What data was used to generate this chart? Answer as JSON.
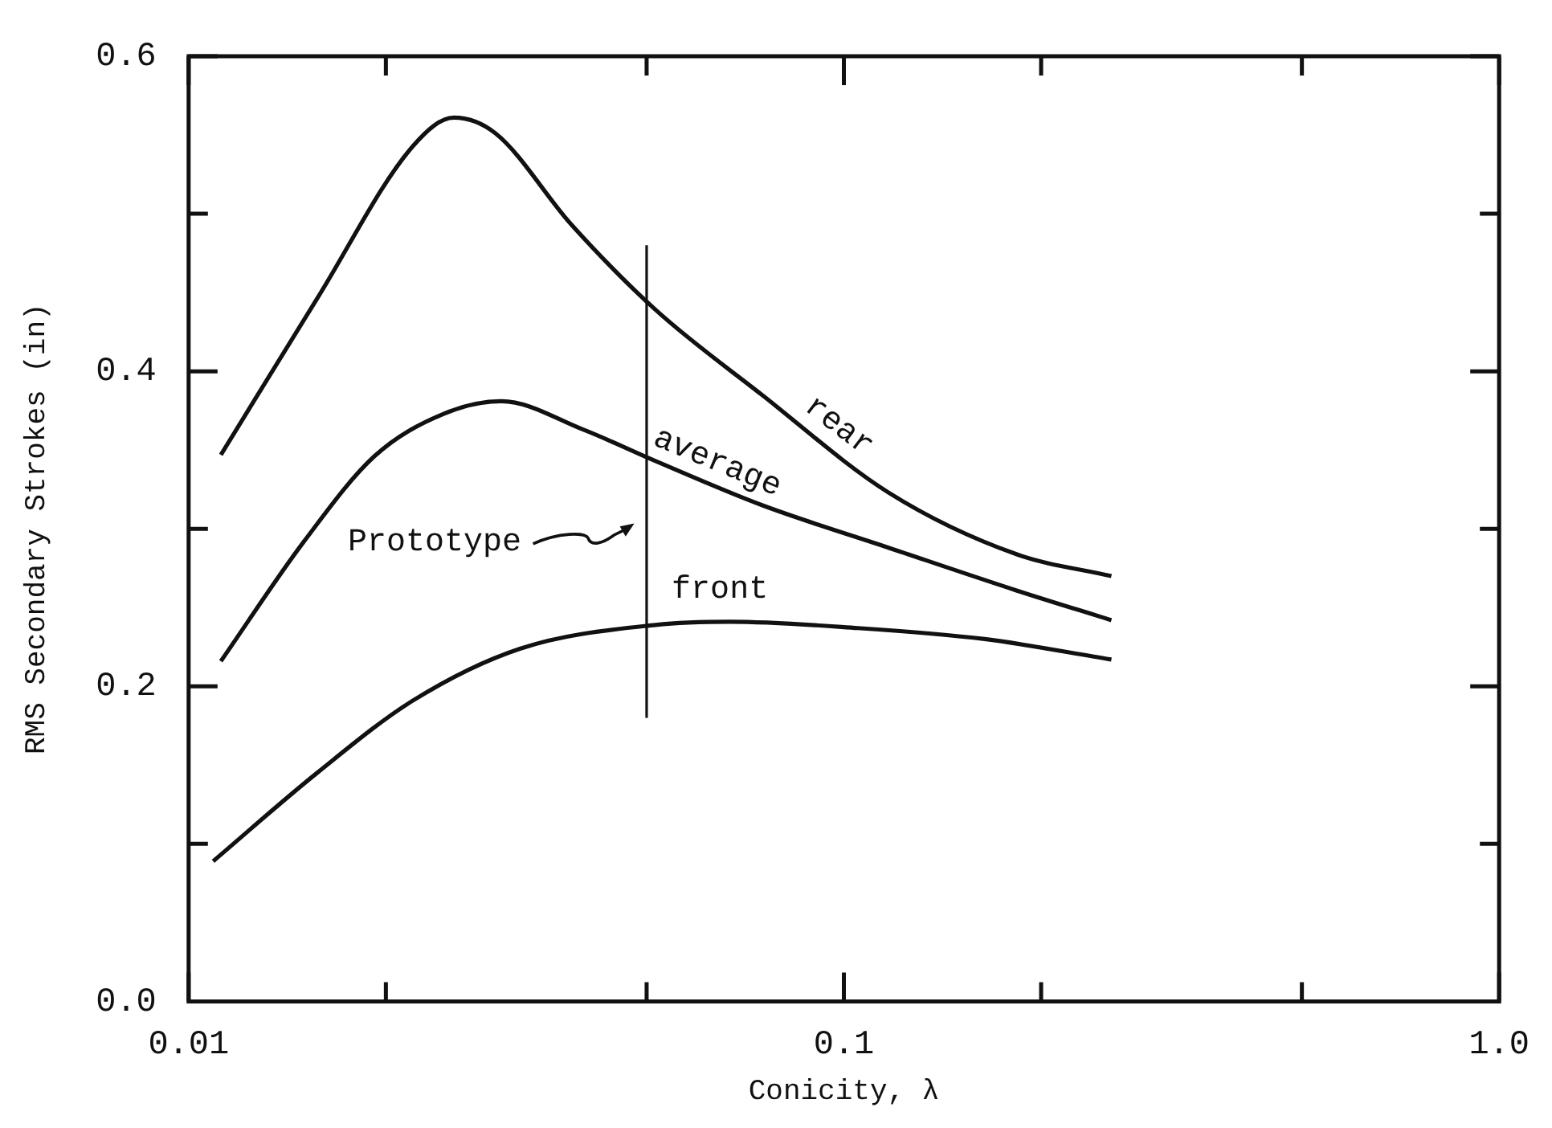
{
  "chart_data": {
    "type": "line",
    "xlabel": "Conicity, λ",
    "ylabel": "RMS Secondary Strokes (in)",
    "log": "x",
    "xlim": [
      0.01,
      1
    ],
    "xticks": [
      {
        "value": 0.01,
        "label": "0.01"
      },
      {
        "value": 0.02,
        "label": null
      },
      {
        "value": 0.05,
        "label": null
      },
      {
        "value": 0.1,
        "label": "0.1"
      },
      {
        "value": 0.2,
        "label": null
      },
      {
        "value": 0.5,
        "label": null
      },
      {
        "value": 1,
        "label": "1.0"
      }
    ],
    "ylim": [
      0,
      0.6
    ],
    "yticks": [
      {
        "value": 0,
        "label": "0.0"
      },
      {
        "value": 0.1,
        "label": null
      },
      {
        "value": 0.2,
        "label": "0.2"
      },
      {
        "value": 0.3,
        "label": null
      },
      {
        "value": 0.4,
        "label": "0.4"
      },
      {
        "value": 0.5,
        "label": null
      },
      {
        "value": 0.6,
        "label": "0.6"
      }
    ],
    "grid": false,
    "legend": false,
    "marker": "none",
    "line_style": "solid",
    "series": [
      {
        "name": "rear",
        "color": "#111111",
        "x": [
          0.0112,
          0.0157,
          0.022,
          0.0254,
          0.0294,
          0.0384,
          0.0516,
          0.075,
          0.117,
          0.183,
          0.256
        ],
        "values": [
          0.347,
          0.446,
          0.543,
          0.561,
          0.551,
          0.493,
          0.439,
          0.385,
          0.323,
          0.284,
          0.27
        ]
      },
      {
        "name": "average",
        "color": "#111111",
        "x": [
          0.0112,
          0.015,
          0.0192,
          0.0245,
          0.03,
          0.04,
          0.0516,
          0.075,
          0.117,
          0.183,
          0.256
        ],
        "values": [
          0.216,
          0.292,
          0.346,
          0.373,
          0.381,
          0.363,
          0.343,
          0.315,
          0.288,
          0.261,
          0.242
        ]
      },
      {
        "name": "front",
        "color": "#111111",
        "x": [
          0.0109,
          0.0157,
          0.022,
          0.0321,
          0.0516,
          0.067,
          0.105,
          0.164,
          0.256
        ],
        "values": [
          0.089,
          0.145,
          0.191,
          0.224,
          0.239,
          0.241,
          0.237,
          0.23,
          0.217
        ]
      }
    ],
    "ref_lines": [
      {
        "axis": "x",
        "value": 0.05,
        "color": "#111111"
      }
    ],
    "annotations": [
      "Prototype"
    ]
  }
}
